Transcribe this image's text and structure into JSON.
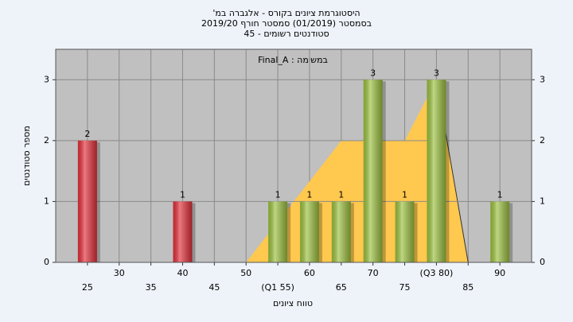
{
  "chart_data": {
    "type": "bar",
    "title": "היסטוגרמת ציונים בקורס - אלגברה במ'",
    "subtitle": "בסמסטר (01/2019) סמסטר חורף 2019/20",
    "subtitle2": "סטודנטים רשומים - 45",
    "annotation": "במשימה : Final_A",
    "x_label": "טווח ציונים",
    "y_label": "מספר סטודנטים",
    "categories": [
      "25",
      "30",
      "35",
      "40",
      "45",
      "50",
      "(Q1 55)",
      "60",
      "65",
      "70",
      "75",
      "(Q3 80)",
      "85",
      "90"
    ],
    "values": [
      2,
      0,
      0,
      1,
      0,
      0,
      1,
      1,
      1,
      3,
      1,
      3,
      0,
      1
    ],
    "colors": [
      "#e3303a",
      "#e3303a",
      "#e3303a",
      "#e3303a",
      "#e3303a",
      "#e3303a",
      "#9cc13f",
      "#9cc13f",
      "#9cc13f",
      "#9cc13f",
      "#9cc13f",
      "#9cc13f",
      "#9cc13f",
      "#9cc13f"
    ],
    "area": {
      "color": "#ffc84f",
      "values": [
        null,
        null,
        null,
        null,
        null,
        0,
        0.67,
        1.33,
        2,
        2,
        2,
        3,
        0,
        null
      ]
    },
    "ylim": [
      0,
      3.5
    ],
    "yticks": [
      0,
      1,
      2,
      3
    ],
    "grid": true
  }
}
